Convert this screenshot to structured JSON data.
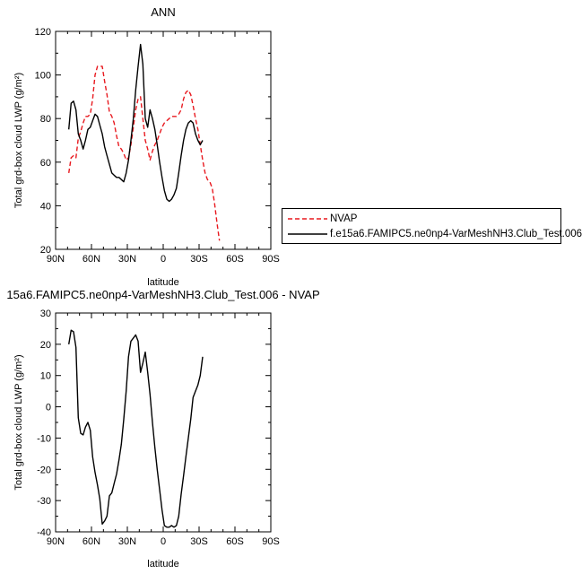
{
  "chart_data": [
    {
      "type": "line",
      "title": "ANN",
      "xlabel": "latitude",
      "ylabel": "Total grd-box cloud LWP (g/m²)",
      "xlim": [
        90,
        -90
      ],
      "ylim": [
        20,
        120
      ],
      "xticks": [
        90,
        60,
        30,
        0,
        -30,
        -60,
        -90
      ],
      "xtick_labels": [
        "90N",
        "60N",
        "30N",
        "0",
        "30S",
        "60S",
        "90S"
      ],
      "yticks": [
        20,
        40,
        60,
        80,
        100,
        120
      ],
      "ytick_labels": [
        "20",
        "40",
        "60",
        "80",
        "100",
        "120"
      ],
      "legend_position": "right",
      "series": [
        {
          "name": "NVAP",
          "color": "#e8191f",
          "dash": "dashed",
          "points": [
            [
              79,
              55
            ],
            [
              77,
              62
            ],
            [
              75,
              63
            ],
            [
              73,
              62
            ],
            [
              71,
              71
            ],
            [
              69,
              74
            ],
            [
              67,
              78
            ],
            [
              65,
              81
            ],
            [
              63,
              81
            ],
            [
              61,
              82
            ],
            [
              59,
              89
            ],
            [
              57,
              100
            ],
            [
              55,
              104
            ],
            [
              53,
              104
            ],
            [
              51,
              104
            ],
            [
              49,
              97
            ],
            [
              47,
              91
            ],
            [
              45,
              83
            ],
            [
              43,
              81
            ],
            [
              41,
              78
            ],
            [
              39,
              72
            ],
            [
              37,
              67
            ],
            [
              35,
              66
            ],
            [
              33,
              64
            ],
            [
              31,
              61
            ],
            [
              29,
              62
            ],
            [
              27,
              68
            ],
            [
              25,
              76
            ],
            [
              23,
              84
            ],
            [
              21,
              89
            ],
            [
              19,
              90
            ],
            [
              17,
              80
            ],
            [
              15,
              70
            ],
            [
              13,
              66
            ],
            [
              11,
              61
            ],
            [
              9,
              65
            ],
            [
              7,
              68
            ],
            [
              5,
              70
            ],
            [
              3,
              73
            ],
            [
              1,
              76
            ],
            [
              -1,
              78
            ],
            [
              -3,
              79
            ],
            [
              -5,
              80
            ],
            [
              -7,
              81
            ],
            [
              -9,
              81
            ],
            [
              -11,
              81
            ],
            [
              -13,
              82
            ],
            [
              -15,
              84
            ],
            [
              -17,
              89
            ],
            [
              -19,
              92
            ],
            [
              -21,
              93
            ],
            [
              -23,
              91
            ],
            [
              -25,
              86
            ],
            [
              -27,
              80
            ],
            [
              -29,
              75
            ],
            [
              -31,
              68
            ],
            [
              -33,
              61
            ],
            [
              -35,
              55
            ],
            [
              -37,
              52
            ],
            [
              -39,
              51
            ],
            [
              -41,
              48
            ],
            [
              -43,
              41
            ],
            [
              -45,
              32
            ],
            [
              -47,
              24
            ]
          ]
        },
        {
          "name": "f.e15a6.FAMIPC5.ne0np4-VarMeshNH3.Club_Test.006",
          "color": "#000000",
          "dash": "solid",
          "points": [
            [
              79,
              75
            ],
            [
              77,
              87
            ],
            [
              75,
              88
            ],
            [
              73,
              84
            ],
            [
              71,
              73
            ],
            [
              69,
              70
            ],
            [
              67,
              66
            ],
            [
              65,
              70
            ],
            [
              63,
              75
            ],
            [
              61,
              76
            ],
            [
              59,
              79
            ],
            [
              57,
              82
            ],
            [
              55,
              81
            ],
            [
              53,
              77
            ],
            [
              51,
              73
            ],
            [
              49,
              67
            ],
            [
              47,
              63
            ],
            [
              45,
              59
            ],
            [
              43,
              55
            ],
            [
              41,
              54
            ],
            [
              39,
              53
            ],
            [
              37,
              53
            ],
            [
              35,
              52
            ],
            [
              33,
              51
            ],
            [
              31,
              55
            ],
            [
              29,
              61
            ],
            [
              27,
              70
            ],
            [
              25,
              80
            ],
            [
              23,
              93
            ],
            [
              21,
              104
            ],
            [
              19,
              114
            ],
            [
              17,
              105
            ],
            [
              15,
              80
            ],
            [
              13,
              76
            ],
            [
              11,
              84
            ],
            [
              9,
              80
            ],
            [
              7,
              75
            ],
            [
              5,
              68
            ],
            [
              3,
              60
            ],
            [
              1,
              53
            ],
            [
              -1,
              47
            ],
            [
              -3,
              43
            ],
            [
              -5,
              42
            ],
            [
              -7,
              43
            ],
            [
              -9,
              45
            ],
            [
              -11,
              48
            ],
            [
              -13,
              55
            ],
            [
              -15,
              63
            ],
            [
              -17,
              70
            ],
            [
              -19,
              75
            ],
            [
              -21,
              78
            ],
            [
              -23,
              79
            ],
            [
              -25,
              78
            ],
            [
              -27,
              73
            ],
            [
              -29,
              70
            ],
            [
              -31,
              68
            ],
            [
              -33,
              70
            ]
          ]
        }
      ]
    },
    {
      "type": "line",
      "title": "15a6.FAMIPC5.ne0np4-VarMeshNH3.Club_Test.006 - NVAP",
      "xlabel": "latitude",
      "ylabel": "Total grd-box cloud LWP (g/m²)",
      "xlim": [
        90,
        -90
      ],
      "ylim": [
        -40,
        30
      ],
      "xticks": [
        90,
        60,
        30,
        0,
        -30,
        -60,
        -90
      ],
      "xtick_labels": [
        "90N",
        "60N",
        "30N",
        "0",
        "30S",
        "60S",
        "90S"
      ],
      "yticks": [
        -40,
        -30,
        -20,
        -10,
        0,
        10,
        20,
        30
      ],
      "ytick_labels": [
        "-40",
        "-30",
        "-20",
        "-10",
        "0",
        "10",
        "20",
        "30"
      ],
      "series": [
        {
          "color": "#000000",
          "dash": "solid",
          "points": [
            [
              79,
              20
            ],
            [
              77,
              24.5
            ],
            [
              75,
              24
            ],
            [
              73,
              19
            ],
            [
              71,
              -3.5
            ],
            [
              69,
              -8.5
            ],
            [
              67,
              -9
            ],
            [
              65,
              -6.5
            ],
            [
              63,
              -5
            ],
            [
              61,
              -7.5
            ],
            [
              59,
              -16
            ],
            [
              57,
              -21
            ],
            [
              55,
              -25
            ],
            [
              53,
              -29.5
            ],
            [
              51,
              -37.5
            ],
            [
              49,
              -36.5
            ],
            [
              47,
              -35
            ],
            [
              45,
              -28.5
            ],
            [
              43,
              -27.5
            ],
            [
              41,
              -24.5
            ],
            [
              39,
              -21.5
            ],
            [
              37,
              -17
            ],
            [
              35,
              -12
            ],
            [
              33,
              -4
            ],
            [
              31,
              5
            ],
            [
              29,
              16
            ],
            [
              27,
              21
            ],
            [
              25,
              22
            ],
            [
              23,
              23
            ],
            [
              21,
              21
            ],
            [
              19,
              11
            ],
            [
              17,
              14
            ],
            [
              15,
              17.5
            ],
            [
              13,
              11
            ],
            [
              11,
              4
            ],
            [
              9,
              -5
            ],
            [
              7,
              -13
            ],
            [
              5,
              -20
            ],
            [
              3,
              -26.5
            ],
            [
              1,
              -33
            ],
            [
              -1,
              -38
            ],
            [
              -3,
              -38.5
            ],
            [
              -5,
              -38.5
            ],
            [
              -7,
              -38
            ],
            [
              -9,
              -38.5
            ],
            [
              -11,
              -38
            ],
            [
              -13,
              -35
            ],
            [
              -15,
              -28
            ],
            [
              -17,
              -22
            ],
            [
              -19,
              -16
            ],
            [
              -21,
              -10
            ],
            [
              -23,
              -4
            ],
            [
              -25,
              3
            ],
            [
              -27,
              5
            ],
            [
              -29,
              7
            ],
            [
              -31,
              10
            ],
            [
              -33,
              16
            ]
          ]
        }
      ]
    }
  ]
}
